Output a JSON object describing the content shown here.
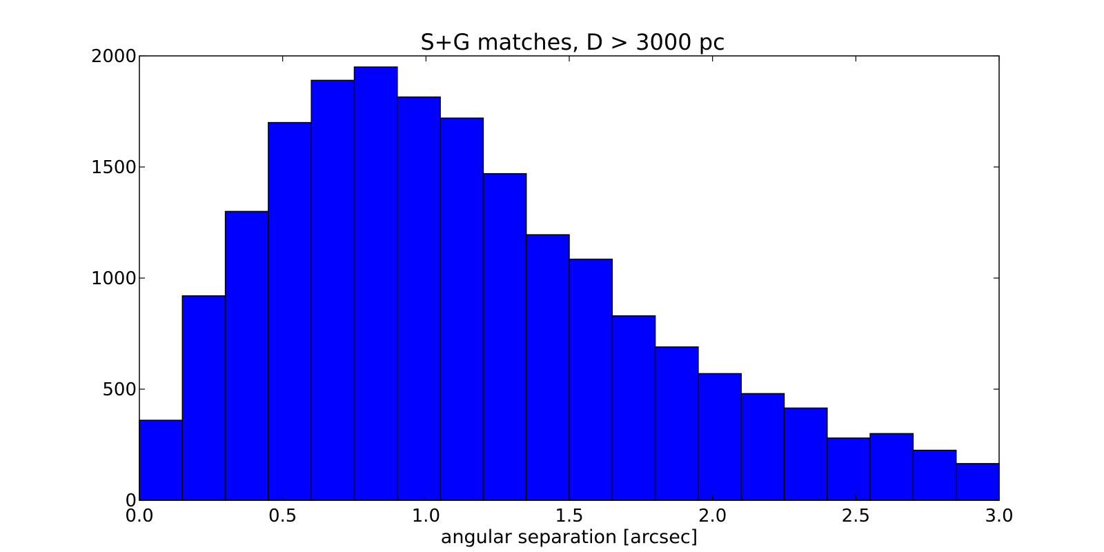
{
  "chart_data": {
    "type": "bar",
    "title": "S+G matches, D > 3000 pc",
    "xlabel": "angular separation [arcsec]",
    "ylabel": "",
    "xlim": [
      0.0,
      3.0
    ],
    "ylim": [
      0,
      2000
    ],
    "grid": false,
    "bar_color": "#0000ff",
    "edge_color": "#000000",
    "bin_edges": [
      0.0,
      0.15,
      0.3,
      0.45,
      0.6,
      0.75,
      0.9,
      1.05,
      1.2,
      1.35,
      1.5,
      1.65,
      1.8,
      1.95,
      2.1,
      2.25,
      2.4,
      2.55,
      2.7,
      2.85,
      3.0
    ],
    "values": [
      360,
      920,
      1300,
      1700,
      1890,
      1950,
      1815,
      1720,
      1470,
      1195,
      1085,
      830,
      690,
      570,
      480,
      415,
      280,
      300,
      225,
      165
    ],
    "x_ticks": [
      0.0,
      0.5,
      1.0,
      1.5,
      2.0,
      2.5,
      3.0
    ],
    "x_tick_labels": [
      "0.0",
      "0.5",
      "1.0",
      "1.5",
      "2.0",
      "2.5",
      "3.0"
    ],
    "y_ticks": [
      0,
      500,
      1000,
      1500,
      2000
    ],
    "y_tick_labels": [
      "0",
      "500",
      "1000",
      "1500",
      "2000"
    ]
  }
}
